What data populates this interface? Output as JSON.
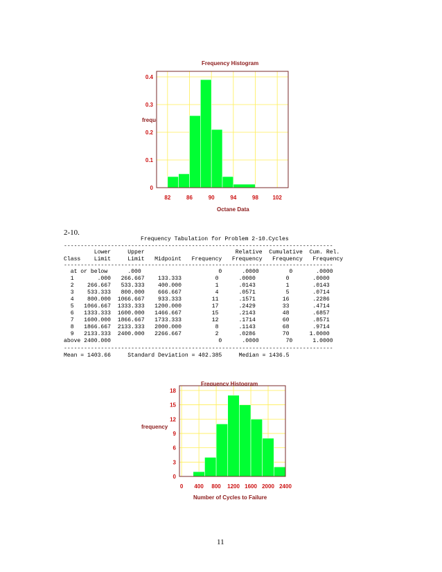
{
  "colors": {
    "bar_fill": "#00ff33",
    "grid": "#ffee55",
    "frame": "#7a2a2a",
    "axis_text": "#cc1111",
    "title_text": "#8b1a1a"
  },
  "problem_label": "2-10.",
  "page_number": "11",
  "chart_data": [
    {
      "type": "bar",
      "title": "Frequency Histogram",
      "xlabel": "Octane Data",
      "ylabel": "frequency",
      "x_ticks": [
        "82",
        "86",
        "90",
        "94",
        "98",
        "102"
      ],
      "x_tick_values": [
        82,
        86,
        90,
        94,
        98,
        102
      ],
      "y_ticks": [
        "0",
        "0.1",
        "0.2",
        "0.3",
        "0.4"
      ],
      "y_tick_values": [
        0,
        0.1,
        0.2,
        0.3,
        0.4
      ],
      "xlim": [
        80,
        104
      ],
      "ylim": [
        0,
        0.42
      ],
      "bins": [
        {
          "from": 82,
          "to": 84,
          "value": 0.04
        },
        {
          "from": 84,
          "to": 86,
          "value": 0.05
        },
        {
          "from": 86,
          "to": 88,
          "value": 0.26
        },
        {
          "from": 88,
          "to": 90,
          "value": 0.39
        },
        {
          "from": 90,
          "to": 92,
          "value": 0.21
        },
        {
          "from": 92,
          "to": 94,
          "value": 0.04
        },
        {
          "from": 94,
          "to": 98,
          "value": 0.0125
        }
      ]
    },
    {
      "type": "bar",
      "title": "Frequency Histogram",
      "xlabel": "Number of Cycles to Failure",
      "ylabel": "frequency",
      "x_ticks": [
        "0",
        "400",
        "800",
        "1200",
        "1600",
        "2000",
        "2400"
      ],
      "x_tick_values": [
        0,
        400,
        800,
        1200,
        1600,
        2000,
        2400
      ],
      "y_ticks": [
        "0",
        "3",
        "6",
        "9",
        "12",
        "15",
        "18"
      ],
      "y_tick_values": [
        0,
        3,
        6,
        9,
        12,
        15,
        18
      ],
      "xlim": [
        -50,
        2400
      ],
      "ylim": [
        0,
        19
      ],
      "bins": [
        {
          "from": 266.667,
          "to": 533.333,
          "value": 1
        },
        {
          "from": 533.333,
          "to": 800.0,
          "value": 4
        },
        {
          "from": 800.0,
          "to": 1066.667,
          "value": 11
        },
        {
          "from": 1066.667,
          "to": 1333.333,
          "value": 17
        },
        {
          "from": 1333.333,
          "to": 1600.0,
          "value": 15
        },
        {
          "from": 1600.0,
          "to": 1866.667,
          "value": 12
        },
        {
          "from": 1866.667,
          "to": 2133.333,
          "value": 8
        },
        {
          "from": 2133.333,
          "to": 2400.0,
          "value": 2
        }
      ]
    }
  ],
  "table": {
    "title": "Frequency Tabulation for Problem 2-10.Cycles",
    "divider": "--------------------------------------------------------------------------------",
    "header_1": "         Lower     Upper                           Relative  Cumulative  Cum. Rel.",
    "header_2": "Class    Limit     Limit   Midpoint   Frequency   Frequency   Frequency   Frequency",
    "rows": [
      "  at or below      .000                       0      .0000         0       .0000",
      "  1       .000   266.667    133.333          0      .0000         0       .0000",
      "  2    266.667   533.333    400.000          1      .0143         1       .0143",
      "  3    533.333   800.000    666.667          4      .0571         5       .0714",
      "  4    800.000  1066.667    933.333         11      .1571        16       .2286",
      "  5   1066.667  1333.333   1200.000         17      .2429        33       .4714",
      "  6   1333.333  1600.000   1466.667         15      .2143        48       .6857",
      "  7   1600.000  1866.667   1733.333         12      .1714        60       .8571",
      "  8   1866.667  2133.333   2000.000          8      .1143        68       .9714",
      "  9   2133.333  2400.000   2266.667          2      .0286        70      1.0000",
      "above 2400.000                                0      .0000        70      1.0000"
    ],
    "summary": "Mean = 1403.66     Standard Deviation = 402.385     Median = 1436.5"
  }
}
